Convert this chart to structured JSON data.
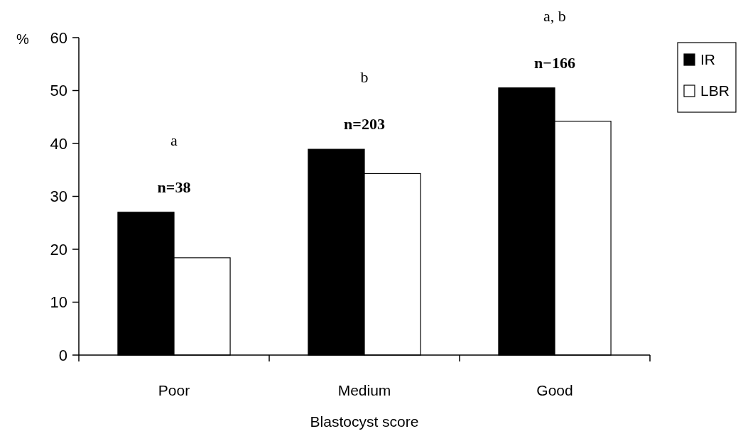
{
  "chart_data": {
    "type": "bar",
    "xlabel": "Blastocyst score",
    "ylabel": "%",
    "categories": [
      "Poor",
      "Medium",
      "Good"
    ],
    "series": [
      {
        "name": "IR",
        "color": "#000000",
        "values": [
          27,
          38.9,
          50.5
        ]
      },
      {
        "name": "LBR",
        "color": "#ffffff",
        "values": [
          18.4,
          34.3,
          44.2
        ]
      }
    ],
    "ylim": [
      0,
      60
    ],
    "yticks": [
      0,
      10,
      20,
      30,
      40,
      50,
      60
    ],
    "legend": "top right",
    "annotations": [
      "a",
      "n=38",
      "b",
      "n=203",
      "a, b",
      "n−166"
    ]
  }
}
